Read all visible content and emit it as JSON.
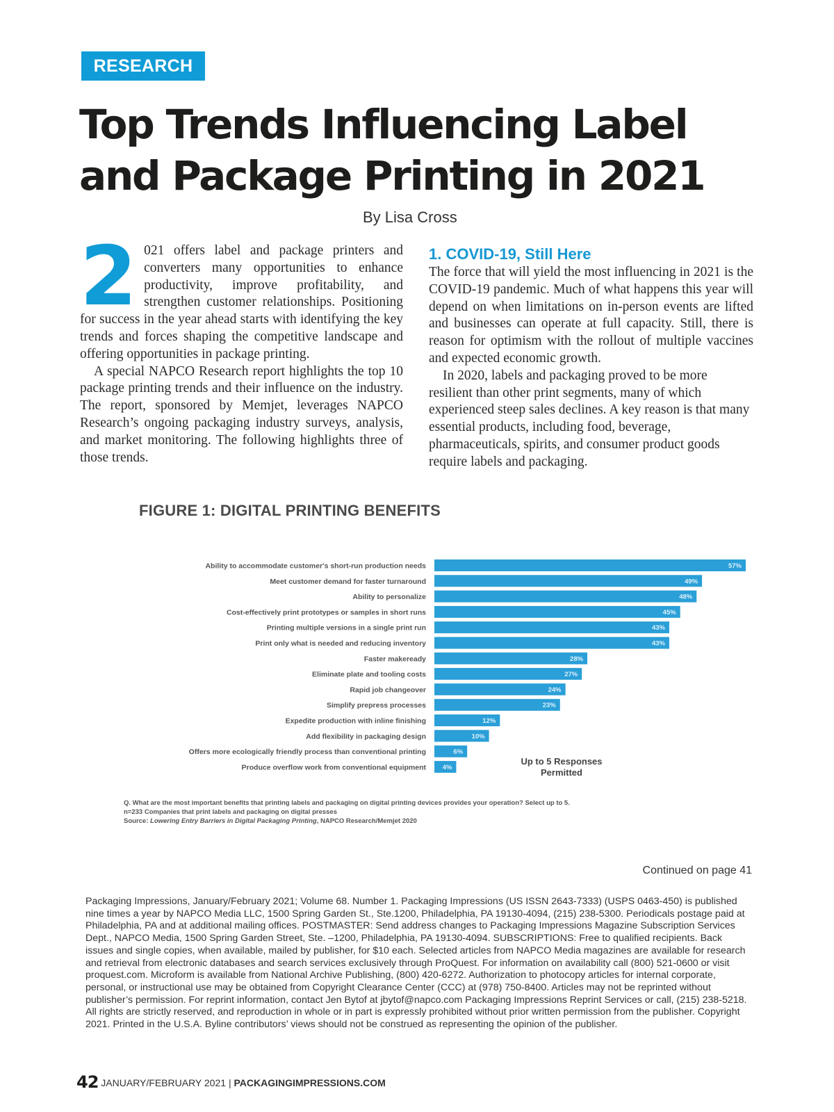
{
  "header": {
    "section_tag": "RESEARCH",
    "title": "Top Trends Influencing Label and Package Printing in 2021",
    "byline": "By Lisa Cross"
  },
  "article": {
    "drop_cap": "2",
    "left_column": [
      "021 offers label and package printers and converters many opportunities to enhance productivity, improve profitability, and strengthen customer relationships. Positioning for success in the year ahead starts with identifying the key trends and forces shaping the competitive landscape and offering opportunities in package printing.",
      "A special NAPCO Research report highlights the top 10 package printing trends and their influence on the industry. The report, sponsored by Memjet, leverages NAPCO Research’s ongoing packaging industry surveys, analysis, and market monitoring. The following highlights three of those trends."
    ],
    "section_heading": "1. COVID-19, Still Here",
    "right_column": [
      "The force that will yield the most influencing in 2021 is the COVID-19 pandemic. Much of what happens this year will depend on when limitations on in-person events are lifted and businesses can operate at full capacity. Still, there is reason for optimism with the rollout of multiple vaccines and expected economic growth.",
      "In 2020, labels and packaging proved to be more resilient than other print segments, many of which experienced steep sales declines. A key reason is that many essential products, including food, beverage, pharmaceuticals, spirits, and consumer product goods require labels and packaging."
    ]
  },
  "figure": {
    "note": "Up to 5 Responses Permitted",
    "question": "Q. What are the most important benefits that printing labels and packaging on digital printing devices provides your operation? Select up to 5.",
    "sample": "n=233 Companies that print labels and packaging on digital presses",
    "source_prefix": "Source: ",
    "source_title": "Lowering Entry Barriers in Digital Packaging Printing",
    "source_suffix": ", NAPCO Research/Memjet 2020",
    "bar_color": "#2a9fd8"
  },
  "chart_data": {
    "type": "bar",
    "orientation": "horizontal",
    "title": "FIGURE 1: DIGITAL PRINTING BENEFITS",
    "xlabel": "",
    "ylabel": "",
    "unit": "%",
    "xlim": [
      0,
      57
    ],
    "grid": false,
    "categories": [
      "Ability to accommodate customer's short-run production needs",
      "Meet customer demand for faster turnaround",
      "Ability to personalize",
      "Cost-effectively print prototypes or samples in short runs",
      "Printing multiple versions in a single print run",
      "Print only what is needed and reducing inventory",
      "Faster makeready",
      "Eliminate plate and tooling costs",
      "Rapid job changeover",
      "Simplify prepress processes",
      "Expedite production with inline finishing",
      "Add flexibility in packaging design",
      "Offers more ecologically friendly process than conventional printing",
      "Produce overflow work from conventional equipment"
    ],
    "values": [
      57,
      49,
      48,
      45,
      43,
      43,
      28,
      27,
      24,
      23,
      12,
      10,
      6,
      4
    ]
  },
  "continued": "Continued on page 41",
  "masthead": "Packaging Impressions, January/February 2021; Volume 68. Number 1. Packaging Impressions (US ISSN 2643-7333) (USPS 0463-450) is published nine times a year by NAPCO Media LLC, 1500 Spring Garden St., Ste.1200, Philadelphia, PA 19130-4094, (215) 238-5300. Periodicals postage paid at Philadelphia, PA and at additional mailing offices. POSTMASTER: Send address changes to Packaging Impressions Magazine Subscription Services Dept., NAPCO Media, 1500 Spring Garden Street, Ste. –1200, Philadelphia, PA 19130-4094. SUBSCRIPTIONS: Free to qualified recipients. Back issues and single copies, when available, mailed by publisher, for $10 each. Selected articles from NAPCO Media magazines are available for research and retrieval from electronic databases and search services exclusively through ProQuest. For information on availability call (800) 521-0600 or visit proquest.com. Microform is available from National Archive Publishing, (800) 420-6272. Authorization to photocopy articles for internal corporate, personal, or instructional use may be obtained from Copyright Clearance Center (CCC) at (978) 750-8400. Articles may not be reprinted without publisher’s permission. For reprint information, contact Jen Bytof at jbytof@napco.com Packaging Impressions Reprint Services or call, (215) 238-5218. All rights are strictly reserved, and reproduction in whole or in part is expressly prohibited without prior written permission from the publisher. Copyright 2021. Printed in the U.S.A. Byline contributors’ views should not be construed as representing the opinion of the publisher.",
  "footer": {
    "page_number": "42",
    "issue": "JANUARY/FEBRUARY 2021",
    "separator": "|",
    "site": "PACKAGINGIMPRESSIONS.COM"
  }
}
